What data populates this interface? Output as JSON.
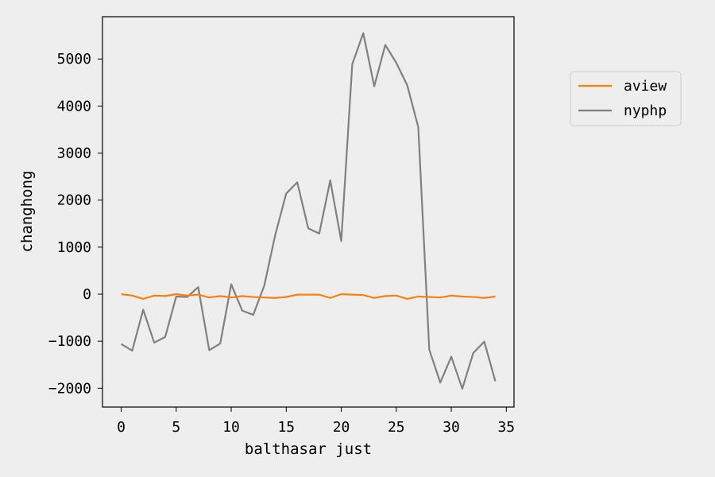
{
  "chart_data": {
    "type": "line",
    "xlabel": "balthasar just",
    "ylabel": "changhong",
    "xlim": [
      -1.7,
      35.7
    ],
    "ylim": [
      -2400,
      5900
    ],
    "xticks": [
      0,
      5,
      10,
      15,
      20,
      25,
      30,
      35
    ],
    "yticks": [
      -2000,
      -1000,
      0,
      1000,
      2000,
      3000,
      4000,
      5000
    ],
    "grid": false,
    "legend_position": "upper right, outside plot",
    "x": [
      0,
      1,
      2,
      3,
      4,
      5,
      6,
      7,
      8,
      9,
      10,
      11,
      12,
      13,
      14,
      15,
      16,
      17,
      18,
      19,
      20,
      21,
      22,
      23,
      24,
      25,
      26,
      27,
      28,
      29,
      30,
      31,
      32,
      33,
      34
    ],
    "series": [
      {
        "name": "aview",
        "color": "#ff7f0e",
        "values": [
          0,
          -30,
          -100,
          -30,
          -40,
          0,
          -30,
          -10,
          -70,
          -40,
          -70,
          -40,
          -60,
          -70,
          -80,
          -60,
          -10,
          -10,
          -10,
          -80,
          0,
          -10,
          -20,
          -80,
          -40,
          -30,
          -100,
          -50,
          -60,
          -70,
          -30,
          -50,
          -60,
          -80,
          -50
        ]
      },
      {
        "name": "nyphp",
        "color": "#808080",
        "values": [
          -1060,
          -1200,
          -330,
          -1030,
          -910,
          -50,
          -60,
          150,
          -1190,
          -1050,
          210,
          -350,
          -440,
          180,
          1260,
          2140,
          2380,
          1400,
          1290,
          2420,
          1130,
          4890,
          5550,
          4420,
          5300,
          4920,
          4440,
          3550,
          -1180,
          -1880,
          -1330,
          -2010,
          -1250,
          -1010,
          -1850
        ]
      }
    ]
  }
}
